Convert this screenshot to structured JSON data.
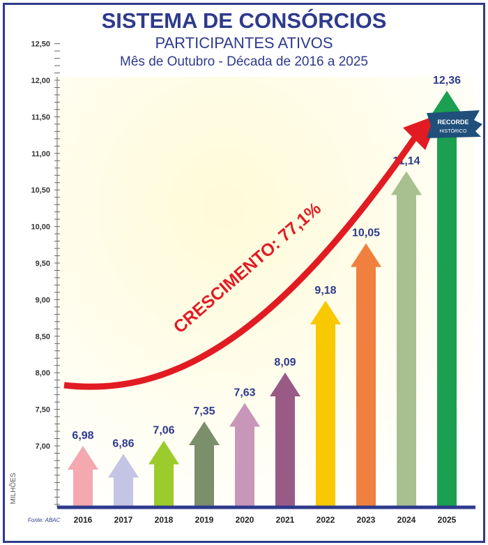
{
  "chart_data": {
    "type": "bar",
    "title": "SISTEMA DE CONSÓRCIOS",
    "subtitle": "PARTICIPANTES ATIVOS",
    "subtitle2": "Mês de Outubro - Década de 2016 a 2025",
    "ylabel": "MILHÕES",
    "source": "Fonte: ABAC",
    "categories": [
      "2016",
      "2017",
      "2018",
      "2019",
      "2020",
      "2021",
      "2022",
      "2023",
      "2024",
      "2025"
    ],
    "values": [
      6.98,
      6.86,
      7.06,
      7.35,
      7.63,
      8.09,
      9.18,
      10.05,
      11.14,
      12.36
    ],
    "value_labels": [
      "6,98",
      "6,86",
      "7,06",
      "7,35",
      "7,63",
      "8,09",
      "9,18",
      "10,05",
      "11,14",
      "12,36"
    ],
    "colors": [
      "#f4a8b0",
      "#c4c4e4",
      "#9ccc2c",
      "#7a8f6a",
      "#c896b8",
      "#9a5a86",
      "#f8c800",
      "#f08040",
      "#a8c090",
      "#1aa050"
    ],
    "yticks": [
      "7,00",
      "7,50",
      "8,00",
      "8,50",
      "9,00",
      "9,50",
      "10,00",
      "10,50",
      "11,00",
      "11,50",
      "12,00",
      "12,50"
    ],
    "ylim": [
      6.5,
      12.5
    ],
    "annotation": "CRESCIMENTO: 77,1%",
    "badge": {
      "line1": "RECORDE",
      "line2": "HISTÓRICO"
    }
  }
}
